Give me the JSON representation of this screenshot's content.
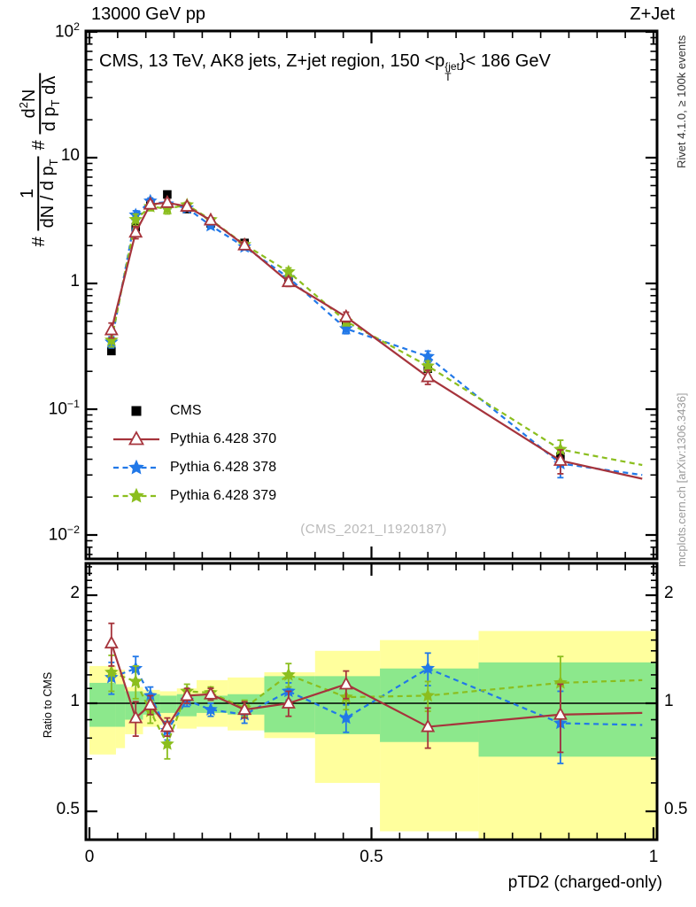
{
  "header": {
    "left": "13000 GeV pp",
    "right": "Z+Jet"
  },
  "title": {
    "prefix": "CMS, 13 TeV, AK8 jets, Z+jet region, 150 <p",
    "sup": "{jet",
    "sub": "T",
    "suffix": "}< 186 GeV"
  },
  "watermark": "(CMS_2021_I1920187)",
  "notes": {
    "rivet": "Rivet 4.1.0, ≥ 100k events",
    "mcplots": "mcplots.cern.ch [arXiv:1306.3436]"
  },
  "axis_labels": {
    "x": "pTD2 (charged-only)",
    "ratio": "Ratio to CMS",
    "y_plain": "# 1/(dN / d p_T)  # d²N/(d p_T dλ)",
    "y_frac1": {
      "hash": "#",
      "num": "1",
      "den_main": "dN / d p",
      "den_sub": "T"
    },
    "y_frac2": {
      "hash": "#",
      "num_main": "d",
      "num_sup": "2",
      "num_tail": "N",
      "den_main": "d p",
      "den_sub": "T",
      "den_tail": " dλ"
    }
  },
  "legend": [
    {
      "label": "CMS",
      "marker": "square",
      "color": "#000000",
      "line": "none"
    },
    {
      "label": "Pythia 6.428 370",
      "marker": "triangle",
      "color": "#a6343c",
      "line": "solid"
    },
    {
      "label": "Pythia 6.428 378",
      "marker": "star",
      "color": "#2178e8",
      "line": "dashed"
    },
    {
      "label": "Pythia 6.428 379",
      "marker": "star",
      "color": "#8bbe1e",
      "line": "dashed"
    }
  ],
  "colors": {
    "yellow_band": "#ffff9d",
    "green_band": "#8ce88c",
    "frame": "#000000",
    "baseline": "#000000",
    "watermark": "#b9b9b9"
  },
  "chart_data": {
    "type": "line",
    "title": "CMS, 13 TeV, AK8 jets, Z+jet region, 150 < pT{jet} < 186 GeV",
    "xlabel": "pTD2 (charged-only)",
    "ylabel": "# 1/(dN / d p_T) # d²N/(d p_T dλ)",
    "ratio_label": "Ratio to CMS",
    "legend_position": "mid-left",
    "grid": false,
    "x_axis": {
      "min": -0.006,
      "max": 1.007,
      "major_ticks": [
        0,
        0.5,
        1
      ],
      "minor_step": 0.05,
      "tick_labels": [
        {
          "text": "0",
          "value": 0
        },
        {
          "text": "0.5",
          "value": 0.5
        },
        {
          "text": "1",
          "value": 1
        }
      ]
    },
    "main_axis": {
      "scale": "log",
      "min": 0.0064,
      "max": 102,
      "tick_labels": [
        {
          "base": "10",
          "exp": "2",
          "value": 100
        },
        {
          "base": "10",
          "exp": "",
          "value": 10
        },
        {
          "base": "1",
          "exp": "",
          "value": 1
        },
        {
          "base": "10",
          "exp": "−1",
          "value": 0.1
        },
        {
          "base": "10",
          "exp": "−2",
          "value": 0.01
        }
      ]
    },
    "ratio_axis": {
      "scale": "log",
      "min": 0.417,
      "max": 2.45,
      "baseline": 1,
      "minor_ticks_from": 0.4,
      "minor_ticks_to": 2.4,
      "minor_step": 0.1,
      "tick_labels": [
        {
          "text": "2",
          "value": 2
        },
        {
          "text": "1",
          "value": 1
        },
        {
          "text": "0.5",
          "value": 0.5
        }
      ]
    },
    "x": [
      0.039,
      0.082,
      0.108,
      0.138,
      0.173,
      0.215,
      0.275,
      0.353,
      0.455,
      0.6,
      0.835
    ],
    "cms": {
      "name": "CMS",
      "marker": "square",
      "color": "#000000",
      "values": [
        0.29,
        2.8,
        4.3,
        5.1,
        3.9,
        3.0,
        2.1,
        1.03,
        0.48,
        0.21,
        0.042
      ]
    },
    "mc_series": [
      {
        "name": "Pythia 6.428 370",
        "color": "#a6343c",
        "marker": "triangle",
        "line": "solid",
        "ratio": [
          1.47,
          0.91,
          0.99,
          0.86,
          1.05,
          1.06,
          0.96,
          1.0,
          1.13,
          0.86,
          0.93
        ],
        "ratio_err": [
          0.2,
          0.1,
          0.06,
          0.05,
          0.05,
          0.04,
          0.05,
          0.08,
          0.1,
          0.11,
          0.2
        ],
        "ext_x": 0.98,
        "ext_ratio": 0.94,
        "ext_value": 0.028
      },
      {
        "name": "Pythia 6.428 378",
        "color": "#2178e8",
        "marker": "star",
        "line": "dashed",
        "ratio": [
          1.18,
          1.25,
          1.05,
          0.84,
          1.02,
          0.96,
          0.93,
          1.08,
          0.91,
          1.25,
          0.88
        ],
        "ratio_err": [
          0.12,
          0.1,
          0.06,
          0.05,
          0.04,
          0.04,
          0.05,
          0.06,
          0.08,
          0.13,
          0.2
        ],
        "ext_x": 0.98,
        "ext_ratio": 0.87,
        "ext_value": 0.03
      },
      {
        "name": "Pythia 6.428 379",
        "color": "#8bbe1e",
        "marker": "star",
        "line": "dashed",
        "ratio": [
          1.22,
          1.15,
          0.95,
          0.77,
          1.08,
          1.07,
          0.97,
          1.2,
          1.04,
          1.05,
          1.14
        ],
        "ratio_err": [
          0.14,
          0.12,
          0.07,
          0.07,
          0.05,
          0.04,
          0.05,
          0.09,
          0.08,
          0.1,
          0.21
        ],
        "ext_x": 0.98,
        "ext_ratio": 1.16,
        "ext_value": 0.036
      }
    ],
    "uncertainty_bands": [
      {
        "x0": 0.0,
        "x1": 0.047,
        "yellow": [
          0.72,
          1.27
        ],
        "green": [
          0.86,
          1.14
        ]
      },
      {
        "x0": 0.047,
        "x1": 0.063,
        "yellow": [
          0.75,
          1.24
        ],
        "green": [
          0.86,
          1.13
        ]
      },
      {
        "x0": 0.063,
        "x1": 0.095,
        "yellow": [
          0.82,
          1.11
        ],
        "green": [
          0.9,
          1.08
        ]
      },
      {
        "x0": 0.095,
        "x1": 0.125,
        "yellow": [
          0.86,
          1.09
        ],
        "green": [
          0.93,
          1.06
        ]
      },
      {
        "x0": 0.125,
        "x1": 0.155,
        "yellow": [
          0.87,
          1.08
        ],
        "green": [
          0.94,
          1.05
        ]
      },
      {
        "x0": 0.155,
        "x1": 0.19,
        "yellow": [
          0.85,
          1.1
        ],
        "green": [
          0.92,
          1.06
        ]
      },
      {
        "x0": 0.19,
        "x1": 0.245,
        "yellow": [
          0.86,
          1.16
        ],
        "green": [
          0.94,
          1.05
        ]
      },
      {
        "x0": 0.245,
        "x1": 0.31,
        "yellow": [
          0.84,
          1.18
        ],
        "green": [
          0.93,
          1.06
        ]
      },
      {
        "x0": 0.31,
        "x1": 0.4,
        "yellow": [
          0.8,
          1.22
        ],
        "green": [
          0.83,
          1.19
        ]
      },
      {
        "x0": 0.4,
        "x1": 0.515,
        "yellow": [
          0.6,
          1.4
        ],
        "green": [
          0.82,
          1.19
        ]
      },
      {
        "x0": 0.515,
        "x1": 0.69,
        "yellow": [
          0.44,
          1.5
        ],
        "green": [
          0.78,
          1.25
        ]
      },
      {
        "x0": 0.69,
        "x1": 1.007,
        "yellow": [
          0.42,
          1.59
        ],
        "green": [
          0.71,
          1.3
        ]
      }
    ]
  }
}
